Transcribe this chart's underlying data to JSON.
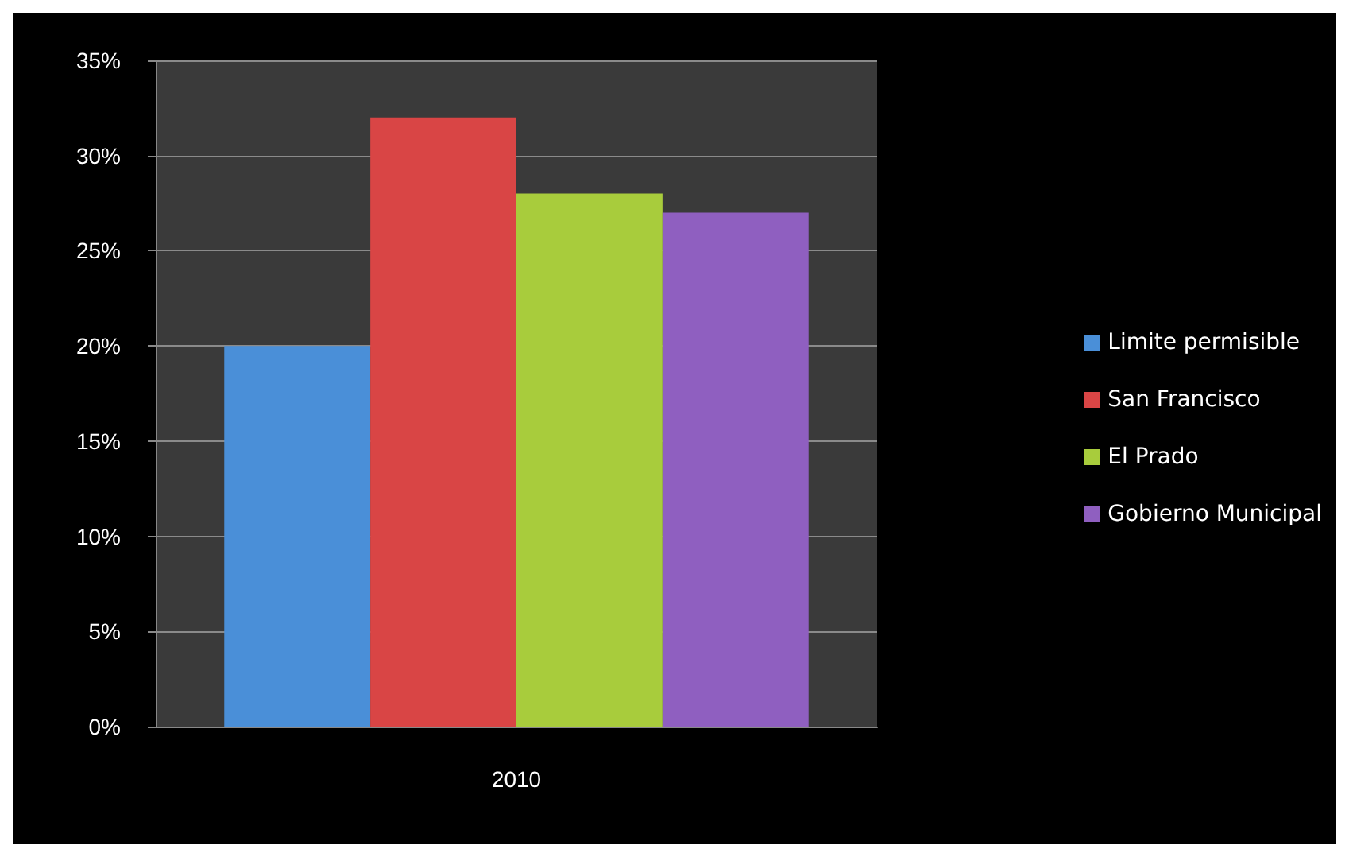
{
  "chart_data": {
    "type": "bar",
    "categories": [
      "2010"
    ],
    "series": [
      {
        "name": "Limite permisible",
        "color": "#4a8fd8",
        "values": [
          20
        ]
      },
      {
        "name": "San Francisco",
        "color": "#d94545",
        "values": [
          32
        ]
      },
      {
        "name": "El Prado",
        "color": "#a8cc3c",
        "values": [
          28
        ]
      },
      {
        "name": "Gobierno Municipal",
        "color": "#8f5fc0",
        "values": [
          27
        ]
      }
    ],
    "ylim": [
      0,
      35
    ],
    "yticks": [
      {
        "value": 0,
        "label": "0%"
      },
      {
        "value": 5,
        "label": "5%"
      },
      {
        "value": 10,
        "label": "10%"
      },
      {
        "value": 15,
        "label": "15%"
      },
      {
        "value": 20,
        "label": "20%"
      },
      {
        "value": 25,
        "label": "25%"
      },
      {
        "value": 30,
        "label": "30%"
      },
      {
        "value": 35,
        "label": "35%"
      }
    ],
    "grid": "y",
    "legend": "right"
  }
}
